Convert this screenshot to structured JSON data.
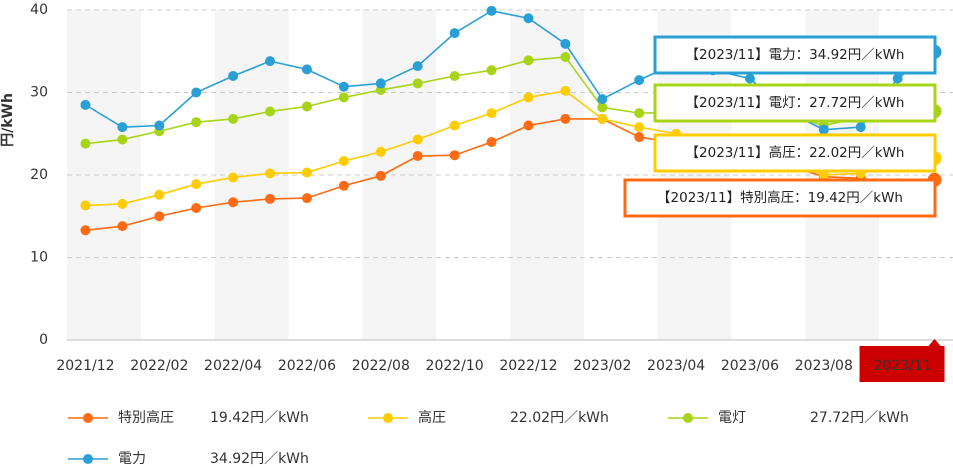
{
  "chart_data": {
    "type": "line",
    "ylabel": "円/kWh",
    "categories": [
      "2021/12",
      null,
      "2022/02",
      null,
      "2022/04",
      null,
      "2022/06",
      null,
      "2022/08",
      null,
      "2022/10",
      null,
      "2022/12",
      null,
      "2023/02",
      null,
      "2023/04",
      null,
      "2023/06",
      null,
      "2023/08",
      null,
      null,
      "2023/11"
    ],
    "ylim": [
      0,
      40
    ],
    "yticks": [
      0,
      10,
      20,
      30,
      40
    ],
    "grid": true,
    "series": [
      {
        "name": "特別高圧",
        "color": "#ff6a13",
        "legend_label": "19.42円／kWh",
        "tooltip": "【2023/11】特別高圧：19.42円／kWh",
        "values": [
          13.3,
          13.8,
          15.0,
          16.0,
          16.7,
          17.1,
          17.2,
          18.7,
          19.9,
          22.3,
          22.4,
          24.0,
          26.0,
          26.8,
          26.8,
          24.6,
          23.9,
          23.2,
          22.4,
          21.2,
          19.8,
          19.6,
          19.0,
          19.42
        ]
      },
      {
        "name": "高圧",
        "color": "#ffcc00",
        "legend_label": "22.02円／kWh",
        "tooltip": "【2023/11】高圧：22.02円／kWh",
        "values": [
          16.3,
          16.5,
          17.6,
          18.9,
          19.7,
          20.2,
          20.3,
          21.7,
          22.8,
          24.3,
          26.0,
          27.5,
          29.4,
          30.2,
          26.8,
          25.8,
          25.0,
          23.6,
          22.8,
          21.7,
          20.0,
          20.2,
          21.3,
          22.02
        ]
      },
      {
        "name": "電灯",
        "color": "#a8d418",
        "legend_label": "27.72円／kWh",
        "tooltip": "【2023/11】電灯：27.72円／kWh",
        "values": [
          23.8,
          24.3,
          25.3,
          26.4,
          26.8,
          27.7,
          28.3,
          29.4,
          30.3,
          31.1,
          32.0,
          32.7,
          33.9,
          34.3,
          28.2,
          27.5,
          27.6,
          27.5,
          27.5,
          27.3,
          26.0,
          27.0,
          27.8,
          27.72
        ]
      },
      {
        "name": "電力",
        "color": "#2a9fd6",
        "legend_label": "34.92円／kWh",
        "tooltip": "【2023/11】電力：34.92円／kWh",
        "values": [
          28.5,
          25.8,
          26.0,
          30.0,
          32.0,
          33.8,
          32.8,
          30.7,
          31.1,
          33.2,
          37.2,
          39.9,
          39.0,
          35.9,
          29.2,
          31.5,
          33.6,
          32.7,
          31.7,
          27.7,
          25.5,
          25.8,
          31.7,
          34.92
        ]
      }
    ]
  }
}
